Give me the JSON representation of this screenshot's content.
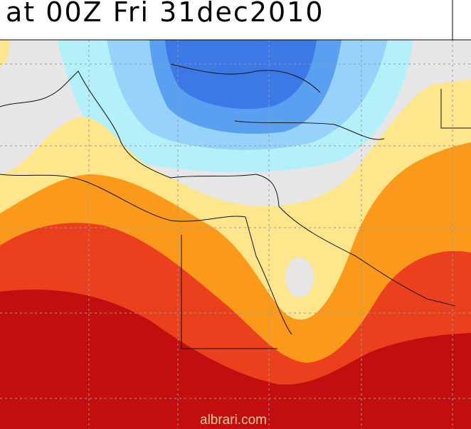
{
  "header": {
    "title": "at 00Z Fri 31dec2010"
  },
  "watermark": "albrari.com"
}
